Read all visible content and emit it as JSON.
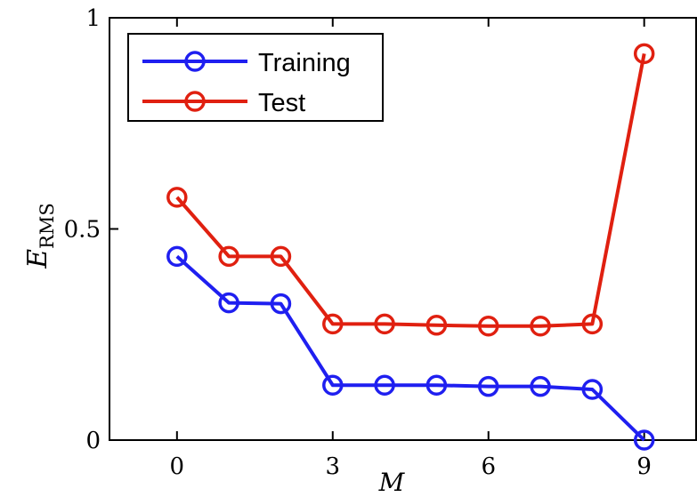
{
  "chart_data": {
    "type": "line",
    "x": [
      0,
      1,
      2,
      3,
      4,
      5,
      6,
      7,
      8,
      9
    ],
    "xticks": [
      0,
      3,
      6,
      9
    ],
    "yticks": [
      0,
      0.5,
      1
    ],
    "ytick_labels": [
      "0",
      "0.5",
      "1"
    ],
    "xlim": [
      -1.3,
      10
    ],
    "ylim": [
      0,
      1
    ],
    "xlabel": "M",
    "ylabel": "E",
    "ylabel_subscript": "RMS",
    "grid": false,
    "legend_position": "top-left",
    "series": [
      {
        "name": "Training",
        "color": "#1f1ff0",
        "marker": "circle",
        "values": [
          0.435,
          0.325,
          0.323,
          0.13,
          0.13,
          0.13,
          0.127,
          0.127,
          0.12,
          0.0
        ]
      },
      {
        "name": "Test",
        "color": "#e02010",
        "marker": "circle",
        "values": [
          0.575,
          0.435,
          0.435,
          0.275,
          0.275,
          0.272,
          0.27,
          0.27,
          0.275,
          0.915
        ]
      }
    ]
  }
}
